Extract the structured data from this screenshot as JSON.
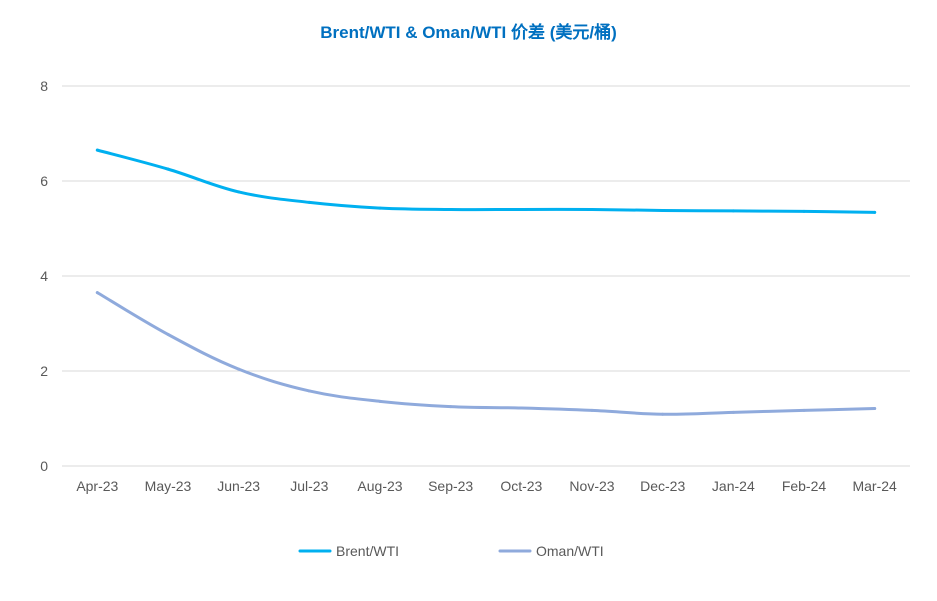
{
  "chart_data": {
    "type": "line",
    "title": "Brent/WTI & Oman/WTI 价差 (美元/桶)",
    "xlabel": "",
    "ylabel": "",
    "categories": [
      "Apr-23",
      "May-23",
      "Jun-23",
      "Jul-23",
      "Aug-23",
      "Sep-23",
      "Oct-23",
      "Nov-23",
      "Dec-23",
      "Jan-24",
      "Feb-24",
      "Mar-24"
    ],
    "series": [
      {
        "name": "Brent/WTI",
        "color": "#00b0f0",
        "values": [
          6.65,
          6.25,
          5.77,
          5.55,
          5.43,
          5.4,
          5.4,
          5.4,
          5.38,
          5.37,
          5.36,
          5.34
        ]
      },
      {
        "name": "Oman/WTI",
        "color": "#8faadc",
        "values": [
          3.65,
          2.77,
          2.04,
          1.58,
          1.36,
          1.25,
          1.22,
          1.17,
          1.09,
          1.13,
          1.17,
          1.21
        ]
      }
    ],
    "ylim": [
      0,
      8
    ],
    "yticks": [
      "0",
      "2",
      "4",
      "6",
      "8"
    ],
    "grid": true,
    "legend_position": "bottom",
    "title_color": "#0070c0",
    "axis_text_color": "#595959",
    "grid_color": "#d9d9d9"
  }
}
